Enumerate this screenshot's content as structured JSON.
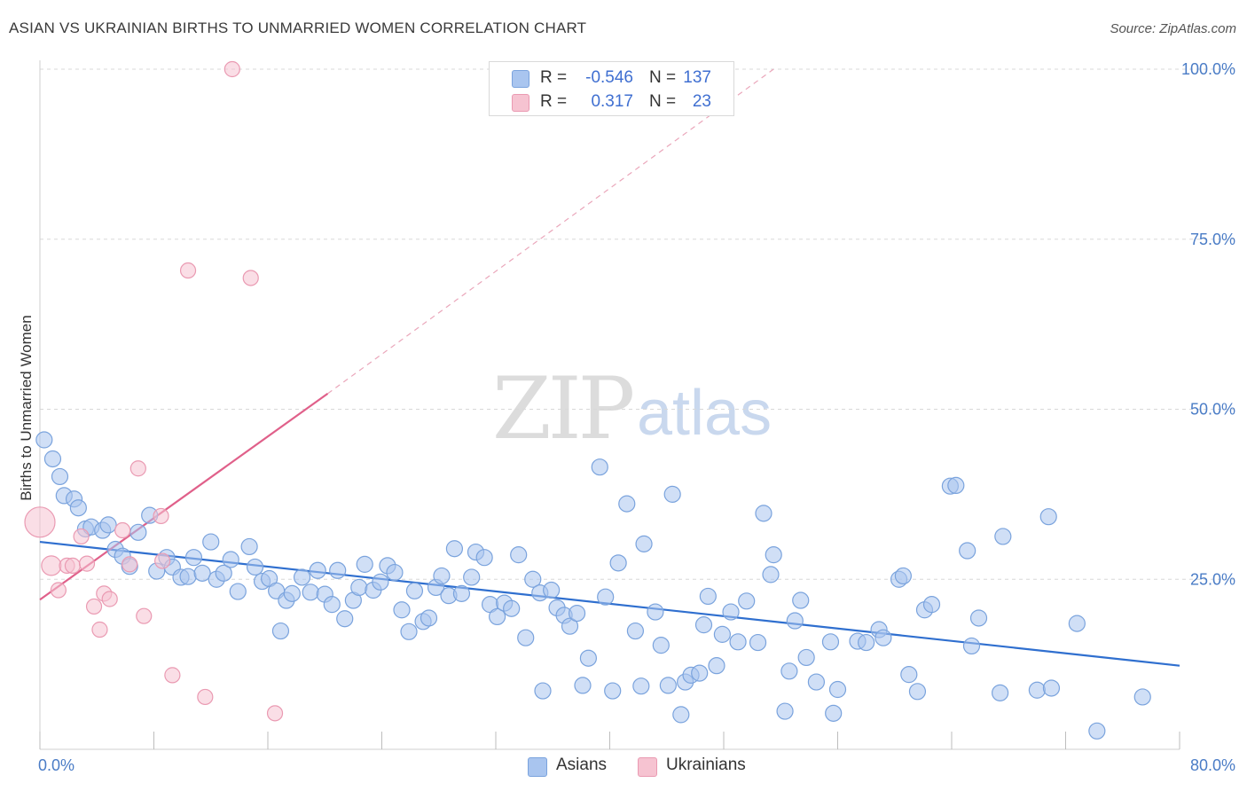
{
  "title": "ASIAN VS UKRAINIAN BIRTHS TO UNMARRIED WOMEN CORRELATION CHART",
  "source": "Source: ZipAtlas.com",
  "watermark": {
    "part1": "ZIP",
    "part2": "atlas"
  },
  "legend": {
    "rows": [
      {
        "r_label": "R =",
        "r_value": "-0.546",
        "n_label": "N =",
        "n_value": "137",
        "color": "#a9c5ef"
      },
      {
        "r_label": "R =",
        "r_value": "0.317",
        "n_label": "N =",
        "n_value": "23",
        "color": "#f4b8c9"
      }
    ]
  },
  "bottom_legend": {
    "asians": "Asians",
    "ukrainians": "Ukrainians"
  },
  "colors": {
    "asian_fill": "#a9c5ef",
    "asian_stroke": "#7aa3dd",
    "asian_line": "#2f6fcf",
    "ukr_fill": "#f6c3d1",
    "ukr_stroke": "#ea9ab2",
    "ukr_line": "#e0608a",
    "tick": "#4a7cc6",
    "grid": "#d8d8d8"
  },
  "chart_data": {
    "type": "scatter",
    "title": "ASIAN VS UKRAINIAN BIRTHS TO UNMARRIED WOMEN CORRELATION CHART",
    "xlabel": "",
    "ylabel": "Births to Unmarried Women",
    "xlim": [
      0,
      80
    ],
    "ylim": [
      0,
      100
    ],
    "x_tick_labels": [
      "0.0%",
      "80.0%"
    ],
    "y_tick_labels": [
      "25.0%",
      "50.0%",
      "75.0%",
      "100.0%"
    ],
    "y_ticks": [
      25,
      50,
      75,
      100
    ],
    "series": [
      {
        "name": "Asians",
        "trend": {
          "x": [
            0,
            80
          ],
          "y": [
            30.5,
            12.3
          ]
        },
        "points": [
          [
            0.3,
            45.5
          ],
          [
            0.9,
            42.7
          ],
          [
            1.4,
            40.1
          ],
          [
            1.7,
            37.3
          ],
          [
            2.4,
            36.8
          ],
          [
            2.7,
            35.5
          ],
          [
            3.2,
            32.4
          ],
          [
            3.6,
            32.7
          ],
          [
            4.4,
            32.2
          ],
          [
            4.8,
            33.0
          ],
          [
            5.3,
            29.4
          ],
          [
            5.8,
            28.4
          ],
          [
            6.3,
            26.9
          ],
          [
            6.9,
            31.9
          ],
          [
            7.7,
            34.4
          ],
          [
            8.2,
            26.2
          ],
          [
            8.9,
            28.2
          ],
          [
            9.3,
            26.8
          ],
          [
            9.9,
            25.3
          ],
          [
            10.4,
            25.4
          ],
          [
            10.8,
            28.2
          ],
          [
            11.4,
            25.9
          ],
          [
            12.0,
            30.5
          ],
          [
            12.4,
            25.0
          ],
          [
            12.9,
            25.9
          ],
          [
            13.4,
            27.9
          ],
          [
            13.9,
            23.2
          ],
          [
            14.7,
            29.8
          ],
          [
            15.1,
            26.8
          ],
          [
            15.6,
            24.7
          ],
          [
            16.1,
            25.1
          ],
          [
            16.6,
            23.3
          ],
          [
            16.9,
            17.4
          ],
          [
            17.3,
            21.9
          ],
          [
            17.7,
            22.9
          ],
          [
            18.4,
            25.3
          ],
          [
            19.0,
            23.1
          ],
          [
            19.5,
            26.3
          ],
          [
            20.0,
            22.8
          ],
          [
            20.5,
            21.3
          ],
          [
            20.9,
            26.3
          ],
          [
            21.4,
            19.2
          ],
          [
            22.0,
            21.9
          ],
          [
            22.4,
            23.8
          ],
          [
            22.8,
            27.2
          ],
          [
            23.4,
            23.4
          ],
          [
            23.9,
            24.6
          ],
          [
            24.4,
            27.0
          ],
          [
            24.9,
            26.0
          ],
          [
            25.4,
            20.5
          ],
          [
            25.9,
            17.3
          ],
          [
            26.3,
            23.3
          ],
          [
            26.9,
            18.8
          ],
          [
            27.3,
            19.3
          ],
          [
            27.8,
            23.8
          ],
          [
            28.2,
            25.5
          ],
          [
            28.7,
            22.6
          ],
          [
            29.1,
            29.5
          ],
          [
            29.6,
            22.9
          ],
          [
            30.3,
            25.3
          ],
          [
            30.6,
            29.0
          ],
          [
            31.2,
            28.2
          ],
          [
            31.6,
            21.3
          ],
          [
            32.1,
            19.5
          ],
          [
            32.6,
            21.5
          ],
          [
            33.1,
            20.7
          ],
          [
            33.6,
            28.6
          ],
          [
            34.1,
            16.4
          ],
          [
            34.6,
            25.0
          ],
          [
            35.1,
            23.0
          ],
          [
            35.3,
            8.6
          ],
          [
            35.9,
            23.4
          ],
          [
            36.3,
            20.8
          ],
          [
            36.8,
            19.7
          ],
          [
            37.2,
            18.1
          ],
          [
            37.7,
            20.0
          ],
          [
            38.1,
            9.4
          ],
          [
            38.5,
            13.4
          ],
          [
            39.3,
            41.5
          ],
          [
            39.7,
            22.4
          ],
          [
            40.2,
            8.6
          ],
          [
            40.6,
            27.4
          ],
          [
            41.2,
            36.1
          ],
          [
            41.8,
            17.4
          ],
          [
            42.2,
            9.3
          ],
          [
            42.4,
            30.2
          ],
          [
            43.2,
            20.2
          ],
          [
            43.6,
            15.3
          ],
          [
            44.1,
            9.4
          ],
          [
            44.4,
            37.5
          ],
          [
            45.0,
            5.1
          ],
          [
            45.3,
            9.9
          ],
          [
            45.7,
            10.9
          ],
          [
            46.3,
            11.2
          ],
          [
            46.6,
            18.3
          ],
          [
            46.9,
            22.5
          ],
          [
            47.5,
            12.3
          ],
          [
            47.9,
            16.9
          ],
          [
            48.5,
            20.2
          ],
          [
            49.0,
            15.8
          ],
          [
            49.6,
            21.8
          ],
          [
            50.4,
            15.7
          ],
          [
            50.8,
            34.7
          ],
          [
            51.3,
            25.7
          ],
          [
            51.5,
            28.6
          ],
          [
            52.3,
            5.6
          ],
          [
            52.6,
            11.5
          ],
          [
            53.0,
            18.9
          ],
          [
            53.4,
            21.9
          ],
          [
            53.8,
            13.5
          ],
          [
            54.5,
            9.9
          ],
          [
            55.5,
            15.8
          ],
          [
            55.7,
            5.3
          ],
          [
            56.0,
            8.8
          ],
          [
            57.4,
            15.9
          ],
          [
            58.0,
            15.7
          ],
          [
            58.9,
            17.6
          ],
          [
            59.2,
            16.4
          ],
          [
            60.3,
            25.0
          ],
          [
            60.6,
            25.5
          ],
          [
            61.0,
            11.0
          ],
          [
            61.6,
            8.5
          ],
          [
            62.1,
            20.5
          ],
          [
            62.6,
            21.3
          ],
          [
            63.9,
            38.7
          ],
          [
            64.3,
            38.8
          ],
          [
            65.1,
            29.2
          ],
          [
            65.4,
            15.2
          ],
          [
            65.9,
            19.3
          ],
          [
            67.4,
            8.3
          ],
          [
            67.6,
            31.3
          ],
          [
            70.0,
            8.7
          ],
          [
            70.8,
            34.2
          ],
          [
            71.0,
            9.0
          ],
          [
            72.8,
            18.5
          ],
          [
            74.2,
            2.7
          ],
          [
            77.4,
            7.7
          ]
        ]
      },
      {
        "name": "Ukrainians",
        "trend": {
          "x": [
            0,
            20.2
          ],
          "y": [
            22.0,
            52.3
          ]
        },
        "trend_extension": {
          "x": [
            20.2,
            51.5
          ],
          "y": [
            52.3,
            100
          ]
        },
        "points": [
          [
            0.0,
            33.4
          ],
          [
            0.8,
            27.0
          ],
          [
            1.3,
            23.4
          ],
          [
            1.9,
            27.0
          ],
          [
            2.3,
            27.0
          ],
          [
            2.9,
            31.3
          ],
          [
            3.3,
            27.3
          ],
          [
            3.8,
            21.0
          ],
          [
            4.2,
            17.6
          ],
          [
            4.5,
            22.9
          ],
          [
            4.9,
            22.1
          ],
          [
            5.8,
            32.2
          ],
          [
            6.3,
            27.2
          ],
          [
            6.9,
            41.3
          ],
          [
            7.3,
            19.6
          ],
          [
            8.6,
            27.7
          ],
          [
            8.5,
            34.3
          ],
          [
            9.3,
            10.9
          ],
          [
            10.4,
            70.4
          ],
          [
            11.6,
            7.7
          ],
          [
            13.5,
            100.0
          ],
          [
            14.8,
            69.3
          ],
          [
            16.5,
            5.3
          ]
        ]
      }
    ],
    "legend": [
      {
        "series": "Asians",
        "R": -0.546,
        "N": 137
      },
      {
        "series": "Ukrainians",
        "R": 0.317,
        "N": 23
      }
    ]
  }
}
